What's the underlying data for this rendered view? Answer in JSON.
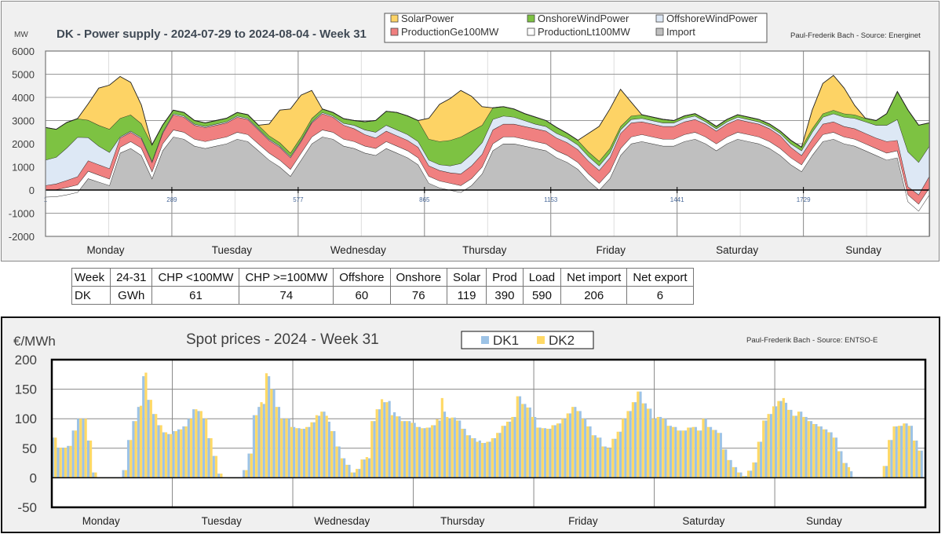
{
  "chart_data": [
    {
      "type": "area",
      "stacked": true,
      "title": "DK - Power supply - 2024-07-29 to 2024-08-04 - Week 31",
      "ylabel": "MW",
      "credit": "Paul-Frederik Bach - Source: Energinet",
      "ylim": [
        -2000,
        6000
      ],
      "yticks": [
        6000,
        5000,
        4000,
        3000,
        2000,
        1000,
        0,
        -1000,
        -2000
      ],
      "xlim": [
        1,
        2016
      ],
      "xticks": [
        1,
        289,
        577,
        865,
        1153,
        1441,
        1729
      ],
      "day_labels": [
        "Monday",
        "Tuesday",
        "Wednesday",
        "Thursday",
        "Friday",
        "Saturday",
        "Sunday"
      ],
      "grid": true,
      "legend_position": "top-right",
      "x_step_hours": 2,
      "stack_order_bottom_to_top": [
        "Import",
        "ProductionLt100MW",
        "ProductionGe100MW",
        "OffshoreWindPower",
        "OnshoreWindPower",
        "SolarPower"
      ],
      "series": [
        {
          "name": "Import",
          "color": "#bfbfbf",
          "values": [
            -300,
            -280,
            -200,
            -100,
            500,
            350,
            200,
            1600,
            1800,
            1500,
            500,
            1700,
            2300,
            2200,
            1900,
            1800,
            1900,
            2000,
            2200,
            2100,
            1700,
            1300,
            1000,
            600,
            1300,
            2000,
            2300,
            2200,
            1900,
            1800,
            1600,
            1500,
            1800,
            1600,
            1400,
            1100,
            300,
            100,
            0,
            -100,
            200,
            700,
            1700,
            2000,
            2000,
            1900,
            1800,
            1700,
            1400,
            1200,
            900,
            400,
            0,
            500,
            1500,
            2000,
            2100,
            2000,
            1900,
            1900,
            2100,
            2200,
            2000,
            1700,
            2000,
            2200,
            2100,
            2000,
            1800,
            1500,
            1100,
            800,
            1500,
            2100,
            2200,
            2000,
            1900,
            1700,
            1500,
            1300,
            1400,
            -500,
            -900,
            -200
          ]
        },
        {
          "name": "ProductionLt100MW",
          "color": "#ffffff",
          "values": [
            300,
            300,
            320,
            330,
            320,
            300,
            280,
            250,
            300,
            320,
            300,
            300,
            300,
            300,
            300,
            300,
            300,
            300,
            300,
            300,
            300,
            300,
            300,
            300,
            300,
            300,
            300,
            300,
            300,
            300,
            300,
            300,
            300,
            300,
            300,
            300,
            300,
            300,
            300,
            300,
            300,
            300,
            300,
            300,
            300,
            300,
            300,
            300,
            300,
            300,
            300,
            300,
            300,
            300,
            300,
            300,
            300,
            300,
            300,
            300,
            300,
            300,
            300,
            300,
            300,
            300,
            300,
            300,
            300,
            300,
            300,
            300,
            300,
            300,
            300,
            300,
            300,
            300,
            300,
            300,
            300,
            300,
            300,
            300
          ]
        },
        {
          "name": "ProductionGe100MW",
          "color": "#f08080",
          "values": [
            200,
            250,
            300,
            350,
            450,
            450,
            450,
            400,
            400,
            400,
            400,
            450,
            650,
            650,
            600,
            600,
            600,
            600,
            650,
            650,
            600,
            550,
            550,
            500,
            500,
            600,
            700,
            650,
            600,
            550,
            500,
            450,
            450,
            450,
            450,
            450,
            450,
            450,
            450,
            500,
            550,
            550,
            600,
            550,
            550,
            550,
            550,
            550,
            550,
            550,
            550,
            550,
            550,
            600,
            650,
            600,
            550,
            550,
            550,
            550,
            550,
            550,
            550,
            550,
            550,
            550,
            550,
            550,
            550,
            550,
            450,
            400,
            400,
            450,
            450,
            450,
            450,
            450,
            450,
            500,
            450,
            350,
            400,
            500
          ]
        },
        {
          "name": "OffshoreWindPower",
          "color": "#dde8f5",
          "values": [
            1100,
            1150,
            1400,
            1700,
            1000,
            800,
            700,
            50,
            50,
            50,
            50,
            50,
            50,
            50,
            50,
            50,
            50,
            50,
            50,
            50,
            50,
            50,
            50,
            50,
            50,
            50,
            50,
            50,
            80,
            150,
            200,
            250,
            250,
            250,
            250,
            250,
            250,
            250,
            300,
            450,
            500,
            500,
            450,
            350,
            300,
            250,
            200,
            200,
            200,
            200,
            200,
            200,
            200,
            200,
            150,
            150,
            150,
            150,
            150,
            150,
            150,
            150,
            100,
            100,
            100,
            100,
            100,
            100,
            100,
            100,
            150,
            200,
            300,
            300,
            350,
            400,
            450,
            500,
            550,
            700,
            900,
            1500,
            1400,
            1300
          ]
        },
        {
          "name": "OnshoreWindPower",
          "color": "#7dc242",
          "values": [
            1400,
            1200,
            1100,
            800,
            750,
            900,
            1000,
            800,
            700,
            600,
            700,
            300,
            150,
            150,
            150,
            150,
            150,
            150,
            150,
            150,
            150,
            150,
            150,
            150,
            150,
            150,
            150,
            150,
            200,
            200,
            350,
            500,
            600,
            750,
            800,
            900,
            900,
            1000,
            1100,
            1150,
            1000,
            750,
            500,
            400,
            350,
            300,
            300,
            250,
            250,
            200,
            200,
            200,
            200,
            200,
            150,
            150,
            150,
            150,
            150,
            100,
            100,
            100,
            100,
            100,
            100,
            100,
            100,
            100,
            100,
            100,
            150,
            150,
            150,
            150,
            150,
            150,
            150,
            150,
            200,
            500,
            1200,
            1800,
            1600,
            1000
          ]
        },
        {
          "name": "SolarPower",
          "color": "#fdd365",
          "values": [
            0,
            0,
            0,
            0,
            700,
            1600,
            1900,
            1800,
            1400,
            800,
            0,
            0,
            0,
            0,
            0,
            0,
            0,
            0,
            0,
            0,
            0,
            500,
            1400,
            1900,
            1800,
            1200,
            0,
            0,
            0,
            0,
            0,
            0,
            0,
            0,
            0,
            0,
            900,
            1600,
            1800,
            2000,
            1500,
            800,
            0,
            0,
            0,
            0,
            0,
            0,
            0,
            0,
            0,
            800,
            1500,
            1700,
            1600,
            600,
            0,
            0,
            0,
            0,
            0,
            0,
            0,
            0,
            0,
            0,
            0,
            0,
            0,
            0,
            0,
            0,
            800,
            1300,
            1500,
            1100,
            400,
            0,
            0,
            0,
            0,
            0,
            0,
            0
          ]
        }
      ]
    },
    {
      "type": "table",
      "rows": [
        [
          "Week",
          "24-31",
          "CHP <100MW",
          "CHP >=100MW",
          "Offshore",
          "Onshore",
          "Solar",
          "Prod",
          "Load",
          "Net import",
          "Net export"
        ],
        [
          "DK",
          "GWh",
          "61",
          "74",
          "60",
          "76",
          "119",
          "390",
          "590",
          "206",
          "6"
        ]
      ]
    },
    {
      "type": "bar",
      "title": "Spot prices - 2024 - Week 31",
      "ylabel": "€/MWh",
      "credit": "Paul-Frederik Bach - Source: ENTSO-E",
      "ylim": [
        -50,
        200
      ],
      "yticks": [
        200,
        150,
        100,
        50,
        0,
        -50
      ],
      "day_labels": [
        "Monday",
        "Tuesday",
        "Wednesday",
        "Thursday",
        "Friday",
        "Saturday",
        "Sunday"
      ],
      "grid": true,
      "legend_position": "top-center",
      "x_unit": "hour",
      "series": [
        {
          "name": "DK1",
          "color": "#9dc3e6",
          "values": [
            68,
            51,
            51,
            54,
            80,
            100,
            100,
            63,
            9,
            -1,
            -1,
            -1,
            -1,
            -1,
            13,
            64,
            96,
            120,
            172,
            132,
            108,
            89,
            77,
            74,
            79,
            82,
            87,
            100,
            116,
            113,
            100,
            67,
            37,
            7,
            0,
            -1,
            -1,
            -1,
            13,
            41,
            106,
            120,
            125,
            172,
            150,
            120,
            100,
            100,
            86,
            84,
            83,
            86,
            94,
            105,
            112,
            95,
            79,
            53,
            33,
            22,
            9,
            15,
            31,
            33,
            96,
            116,
            128,
            130,
            111,
            104,
            96,
            96,
            93,
            86,
            84,
            85,
            89,
            97,
            112,
            100,
            102,
            97,
            83,
            72,
            67,
            63,
            59,
            61,
            67,
            76,
            88,
            95,
            103,
            138,
            125,
            119,
            103,
            85,
            84,
            83,
            89,
            92,
            100,
            109,
            120,
            113,
            100,
            87,
            72,
            68,
            53,
            50,
            66,
            78,
            100,
            113,
            128,
            146,
            126,
            117,
            100,
            103,
            100,
            88,
            86,
            80,
            80,
            85,
            86,
            80,
            100,
            86,
            81,
            76,
            48,
            30,
            18,
            9,
            3,
            12,
            26,
            61,
            97,
            108,
            121,
            130,
            127,
            115,
            105,
            112,
            103,
            96,
            91,
            87,
            82,
            77,
            68,
            45,
            25,
            11,
            1,
            0,
            -1,
            -1,
            -1,
            1,
            20,
            64,
            87,
            88,
            92,
            88,
            63,
            46
          ]
        },
        {
          "name": "DK2",
          "color": "#ffd966",
          "values": [
            68,
            51,
            51,
            54,
            80,
            100,
            100,
            63,
            9,
            -1,
            -1,
            -1,
            -1,
            -1,
            13,
            64,
            96,
            122,
            178,
            132,
            108,
            89,
            77,
            74,
            79,
            82,
            87,
            100,
            116,
            113,
            100,
            67,
            37,
            7,
            0,
            -1,
            -1,
            -1,
            13,
            41,
            106,
            128,
            177,
            150,
            120,
            100,
            100,
            86,
            84,
            83,
            86,
            94,
            106,
            112,
            105,
            79,
            53,
            33,
            22,
            9,
            15,
            31,
            35,
            96,
            116,
            133,
            128,
            106,
            104,
            96,
            96,
            93,
            86,
            84,
            85,
            89,
            99,
            135,
            103,
            102,
            97,
            83,
            72,
            67,
            61,
            59,
            61,
            67,
            76,
            88,
            95,
            103,
            138,
            125,
            119,
            103,
            85,
            84,
            83,
            89,
            92,
            100,
            109,
            120,
            113,
            100,
            87,
            72,
            68,
            53,
            50,
            66,
            78,
            100,
            113,
            128,
            146,
            126,
            117,
            100,
            103,
            100,
            88,
            86,
            80,
            80,
            85,
            86,
            80,
            100,
            86,
            81,
            76,
            48,
            30,
            18,
            9,
            3,
            12,
            26,
            61,
            97,
            108,
            121,
            130,
            135,
            115,
            105,
            112,
            103,
            96,
            91,
            87,
            82,
            77,
            68,
            45,
            25,
            18,
            1,
            0,
            -1,
            -1,
            -1,
            1,
            20,
            64,
            87,
            88,
            92,
            88,
            63,
            46
          ]
        }
      ]
    }
  ],
  "top_chart": {
    "title": "DK - Power supply - 2024-07-29 to 2024-08-04 - Week 31",
    "unit": "MW",
    "credit": "Paul-Frederik Bach - Source: Energinet",
    "legend": [
      {
        "label": "SolarPower",
        "color": "#fdd365"
      },
      {
        "label": "OnshoreWindPower",
        "color": "#7dc242"
      },
      {
        "label": "OffshoreWindPower",
        "color": "#dde8f5"
      },
      {
        "label": "ProductionGe100MW",
        "color": "#f08080"
      },
      {
        "label": "ProductionLt100MW",
        "color": "#ffffff"
      },
      {
        "label": "Import",
        "color": "#bfbfbf"
      }
    ]
  },
  "bottom_chart": {
    "title": "Spot prices - 2024 - Week 31",
    "unit": "€/MWh",
    "credit": "Paul-Frederik Bach - Source: ENTSO-E",
    "legend": [
      {
        "label": "DK1",
        "color": "#9dc3e6"
      },
      {
        "label": "DK2",
        "color": "#ffd966"
      }
    ]
  }
}
